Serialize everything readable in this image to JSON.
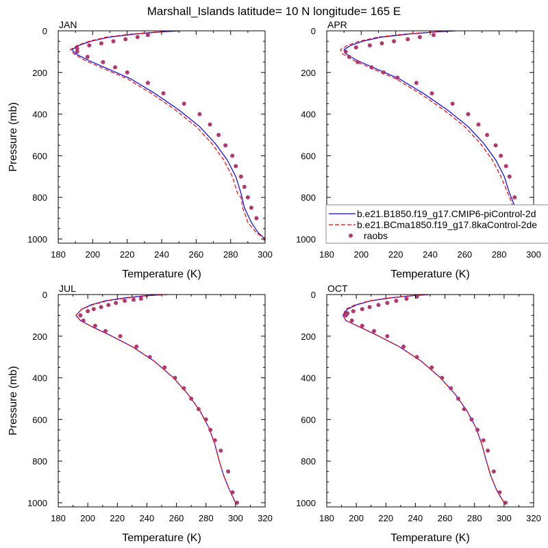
{
  "figure": {
    "title": "Marshall_Islands  latitude= 10 N longitude= 165 E"
  },
  "legend": {
    "entries": [
      {
        "label": "b.e21.B1850.f19_g17.CMIP6-piControl-2d",
        "color": "#0000ff",
        "style": "solid"
      },
      {
        "label": "b.e21.BCma1850.f19_g17.8kaControl-2de",
        "color": "#ff0000",
        "style": "dashed"
      },
      {
        "label": "raobs",
        "color": "#b03a6e",
        "style": "marker"
      }
    ]
  },
  "chart_data": [
    {
      "type": "line",
      "title": "JAN",
      "xlabel": "Temperature (K)",
      "ylabel": "Pressure (mb)",
      "xlim": [
        180,
        300
      ],
      "ylim": [
        0,
        1020
      ],
      "y_inverted": true,
      "xticks": [
        180,
        200,
        220,
        240,
        260,
        280,
        300
      ],
      "yticks": [
        0,
        200,
        400,
        600,
        800,
        1000
      ],
      "series": [
        {
          "name": "b.e21.B1850.f19_g17.CMIP6-piControl-2d",
          "color": "#0000ff",
          "style": "solid",
          "x": [
            251,
            240,
            225,
            210,
            199,
            192,
            188,
            190,
            197,
            208,
            222,
            236,
            250,
            262,
            271,
            278,
            283,
            286,
            288,
            292,
            296,
            300
          ],
          "y": [
            0,
            5,
            15,
            30,
            50,
            70,
            90,
            110,
            140,
            180,
            230,
            300,
            380,
            460,
            540,
            620,
            700,
            780,
            850,
            920,
            970,
            1000
          ]
        },
        {
          "name": "b.e21.BCma1850.f19_g17.8kaControl-2de",
          "color": "#ff0000",
          "style": "dashed",
          "x": [
            248,
            238,
            223,
            208,
            198,
            191,
            187,
            189,
            195,
            206,
            220,
            234,
            248,
            260,
            269,
            276,
            281,
            284,
            286,
            287,
            290,
            295,
            300
          ],
          "y": [
            0,
            5,
            15,
            30,
            50,
            70,
            90,
            110,
            140,
            180,
            230,
            300,
            380,
            460,
            540,
            620,
            700,
            780,
            800,
            850,
            920,
            970,
            1000
          ]
        },
        {
          "name": "raobs",
          "color": "#b03a6e",
          "style": "marker",
          "x": [
            232,
            226,
            219,
            212,
            205,
            198,
            191,
            191,
            197,
            206,
            213,
            220,
            232,
            241,
            253,
            262,
            268,
            273,
            277,
            281,
            283,
            286,
            288,
            290,
            292,
            295,
            300
          ],
          "y": [
            20,
            30,
            40,
            50,
            60,
            70,
            85,
            100,
            125,
            150,
            175,
            200,
            250,
            300,
            350,
            400,
            450,
            500,
            550,
            600,
            650,
            700,
            750,
            800,
            850,
            900,
            1000
          ]
        }
      ]
    },
    {
      "type": "line",
      "title": "APR",
      "xlabel": "Temperature (K)",
      "ylabel": "",
      "xlim": [
        180,
        300
      ],
      "ylim": [
        0,
        1020
      ],
      "y_inverted": true,
      "xticks": [
        180,
        200,
        220,
        240,
        260,
        280,
        300
      ],
      "yticks": [
        0,
        200,
        400,
        600,
        800,
        1000
      ],
      "series": [
        {
          "name": "b.e21.B1850.f19_g17.CMIP6-piControl-2d",
          "color": "#0000ff",
          "style": "solid",
          "x": [
            255,
            244,
            228,
            212,
            201,
            194,
            190,
            191,
            197,
            208,
            222,
            236,
            250,
            262,
            271,
            278,
            283,
            286,
            290,
            294,
            300
          ],
          "y": [
            0,
            5,
            15,
            30,
            50,
            70,
            90,
            110,
            140,
            180,
            230,
            300,
            380,
            460,
            540,
            620,
            700,
            780,
            860,
            930,
            1000
          ]
        },
        {
          "name": "b.e21.BCma1850.f19_g17.8kaControl-2de",
          "color": "#ff0000",
          "style": "dashed",
          "x": [
            252,
            242,
            226,
            210,
            199,
            192,
            188,
            189,
            195,
            206,
            220,
            234,
            248,
            260,
            269,
            276,
            281,
            285,
            289,
            294,
            300
          ],
          "y": [
            0,
            5,
            15,
            30,
            50,
            70,
            90,
            110,
            140,
            180,
            230,
            300,
            380,
            460,
            540,
            620,
            700,
            780,
            860,
            930,
            1000
          ]
        },
        {
          "name": "raobs",
          "color": "#b03a6e",
          "style": "marker",
          "x": [
            242,
            234,
            227,
            219,
            212,
            205,
            197,
            191,
            193,
            198,
            206,
            213,
            221,
            232,
            241,
            253,
            262,
            268,
            273,
            278,
            281,
            284,
            286,
            289,
            296,
            300
          ],
          "y": [
            20,
            30,
            40,
            50,
            60,
            70,
            80,
            100,
            125,
            150,
            175,
            200,
            225,
            250,
            300,
            350,
            400,
            450,
            500,
            550,
            600,
            650,
            700,
            800,
            950,
            1000
          ]
        }
      ]
    },
    {
      "type": "line",
      "title": "JUL",
      "xlabel": "Temperature (K)",
      "ylabel": "Pressure (mb)",
      "xlim": [
        180,
        320
      ],
      "ylim": [
        0,
        1020
      ],
      "y_inverted": true,
      "xticks": [
        180,
        200,
        220,
        240,
        260,
        280,
        300,
        320
      ],
      "yticks": [
        0,
        200,
        400,
        600,
        800,
        1000
      ],
      "series": [
        {
          "name": "b.e21.B1850.f19_g17.CMIP6-piControl-2d",
          "color": "#0000ff",
          "style": "solid",
          "x": [
            251,
            240,
            226,
            212,
            202,
            196,
            192,
            195,
            203,
            215,
            230,
            245,
            258,
            268,
            276,
            282,
            286,
            289,
            292,
            296,
            300
          ],
          "y": [
            0,
            5,
            15,
            30,
            50,
            70,
            100,
            125,
            155,
            195,
            250,
            320,
            400,
            480,
            560,
            640,
            720,
            800,
            870,
            940,
            1000
          ]
        },
        {
          "name": "b.e21.BCma1850.f19_g17.8kaControl-2de",
          "color": "#ff0000",
          "style": "dashed",
          "x": [
            254,
            243,
            228,
            213,
            203,
            196,
            192,
            195,
            203,
            215,
            230,
            245,
            258,
            268,
            276,
            282,
            286,
            289,
            292,
            296,
            300
          ],
          "y": [
            0,
            5,
            15,
            30,
            50,
            70,
            100,
            125,
            155,
            195,
            250,
            320,
            400,
            480,
            560,
            640,
            720,
            800,
            870,
            940,
            1000
          ]
        },
        {
          "name": "raobs",
          "color": "#b03a6e",
          "style": "marker",
          "x": [
            236,
            231,
            225,
            219,
            214,
            209,
            204,
            200,
            195,
            197,
            205,
            212,
            222,
            233,
            242,
            252,
            259,
            265,
            270,
            275,
            280,
            283,
            286,
            290,
            295,
            298,
            301
          ],
          "y": [
            20,
            25,
            30,
            40,
            50,
            60,
            70,
            80,
            100,
            125,
            150,
            175,
            200,
            250,
            300,
            350,
            400,
            450,
            500,
            550,
            600,
            650,
            700,
            750,
            850,
            950,
            1000
          ]
        }
      ]
    },
    {
      "type": "line",
      "title": "OCT",
      "xlabel": "Temperature (K)",
      "ylabel": "",
      "xlim": [
        180,
        320
      ],
      "ylim": [
        0,
        1020
      ],
      "y_inverted": true,
      "xticks": [
        180,
        200,
        220,
        240,
        260,
        280,
        300,
        320
      ],
      "yticks": [
        0,
        200,
        400,
        600,
        800,
        1000
      ],
      "series": [
        {
          "name": "b.e21.B1850.f19_g17.CMIP6-piControl-2d",
          "color": "#0000ff",
          "style": "solid",
          "x": [
            250,
            239,
            224,
            210,
            200,
            194,
            191,
            193,
            202,
            214,
            229,
            244,
            257,
            267,
            275,
            281,
            285,
            288,
            291,
            295,
            300
          ],
          "y": [
            0,
            5,
            15,
            30,
            50,
            70,
            100,
            125,
            155,
            195,
            250,
            320,
            400,
            480,
            560,
            640,
            720,
            800,
            870,
            940,
            1000
          ]
        },
        {
          "name": "b.e21.BCma1850.f19_g17.8kaControl-2de",
          "color": "#ff0000",
          "style": "dashed",
          "x": [
            249,
            238,
            223,
            209,
            199,
            193,
            191,
            193,
            202,
            214,
            229,
            244,
            257,
            267,
            275,
            281,
            285,
            288,
            291,
            295,
            300
          ],
          "y": [
            0,
            5,
            15,
            30,
            50,
            70,
            100,
            125,
            155,
            195,
            250,
            320,
            400,
            480,
            560,
            640,
            720,
            800,
            870,
            940,
            1000
          ]
        },
        {
          "name": "raobs",
          "color": "#b03a6e",
          "style": "marker",
          "x": [
            241,
            234,
            227,
            221,
            215,
            209,
            204,
            198,
            194,
            193,
            197,
            204,
            212,
            221,
            232,
            241,
            251,
            258,
            264,
            269,
            273,
            278,
            282,
            286,
            289,
            293,
            297,
            301
          ],
          "y": [
            10,
            20,
            30,
            40,
            50,
            60,
            70,
            80,
            90,
            100,
            125,
            150,
            175,
            200,
            250,
            300,
            350,
            400,
            450,
            500,
            550,
            600,
            650,
            700,
            750,
            850,
            950,
            1000
          ]
        }
      ]
    }
  ]
}
